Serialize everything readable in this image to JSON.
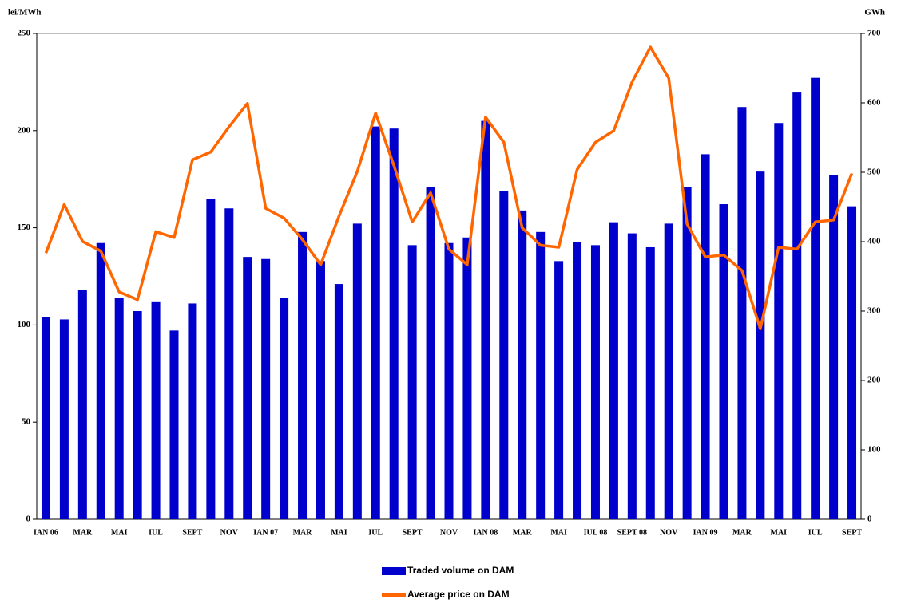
{
  "chart_data": {
    "type": "bar_line",
    "y_label": "lei/MWh",
    "y2_label": "GWh",
    "categories": [
      "IAN 06",
      null,
      "MAR",
      null,
      "MAI",
      null,
      "IUL",
      null,
      "SEPT",
      null,
      "NOV",
      null,
      "IAN 07",
      null,
      "MAR",
      null,
      "MAI",
      null,
      "IUL",
      null,
      "SEPT",
      null,
      "NOV",
      null,
      "IAN 08",
      null,
      "MAR",
      null,
      "MAI",
      null,
      "IUL 08",
      null,
      "SEPT 08",
      null,
      "NOV",
      null,
      "IAN 09",
      null,
      "MAR",
      null,
      "MAI",
      null,
      "IUL",
      null,
      "SEPT"
    ],
    "ylim": [
      0,
      250
    ],
    "yticks": [
      0,
      50,
      100,
      150,
      200,
      250
    ],
    "y2lim": [
      0,
      700
    ],
    "y2ticks": [
      0,
      100,
      200,
      300,
      400,
      500,
      600,
      700
    ],
    "series": [
      {
        "name": "Traded volume on DAM",
        "type": "bar",
        "axis": "y2",
        "color": "#0000cc",
        "values": [
          291,
          288,
          330,
          398,
          319,
          300,
          314,
          272,
          311,
          462,
          448,
          378,
          375,
          319,
          414,
          372,
          339,
          426,
          566,
          563,
          395,
          479,
          398,
          406,
          574,
          473,
          445,
          414,
          372,
          400,
          395,
          428,
          412,
          392,
          426,
          479,
          526,
          454,
          594,
          501,
          571,
          616,
          636,
          496,
          451
        ]
      },
      {
        "name": "Average price on DAM",
        "type": "line",
        "color": "#ff6600",
        "values": [
          137,
          162,
          143,
          138,
          117,
          113,
          148,
          145,
          185,
          189,
          202,
          214,
          160,
          155,
          144,
          131,
          156,
          179,
          209,
          182,
          153,
          168,
          139,
          131,
          207,
          194,
          150,
          141,
          140,
          180,
          194,
          200,
          225,
          243,
          227,
          152,
          135,
          136,
          128,
          98,
          140,
          139,
          153,
          154,
          178
        ]
      }
    ]
  }
}
